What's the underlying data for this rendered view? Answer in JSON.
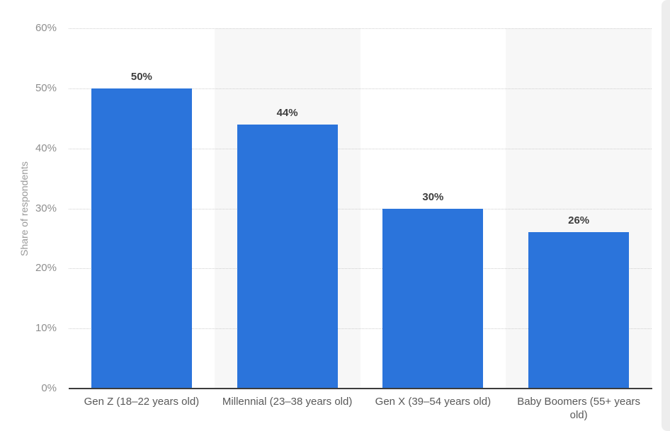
{
  "chart_data": {
    "type": "bar",
    "title": "",
    "categories": [
      "Gen Z (18–22 years old)",
      "Millennial (23–38 years old)",
      "Gen X (39–54 years old)",
      "Baby Boomers (55+ years old)"
    ],
    "values": [
      50,
      44,
      30,
      26
    ],
    "data_labels": [
      "50%",
      "44%",
      "30%",
      "26%"
    ],
    "xlabel": "",
    "ylabel": "Share of respondents",
    "ylim": [
      0,
      60
    ],
    "ytick_step": 10,
    "ytick_labels": [
      "0%",
      "10%",
      "20%",
      "30%",
      "40%",
      "50%",
      "60%"
    ],
    "grid": "horizontal-dotted",
    "legend_position": "none",
    "banded_columns": [
      1,
      3
    ],
    "colors": {
      "bar": "#2b74db",
      "column_band": "#f7f7f7",
      "gridline": "#cfcfcf",
      "axis_line": "#3c3c3c",
      "value_label": "#3d3d3d",
      "tick_label": "#8e8e8e",
      "category_label": "#595959",
      "axis_title": "#9a9a9a",
      "scrollbar": "#ededed",
      "background": "#ffffff"
    }
  }
}
